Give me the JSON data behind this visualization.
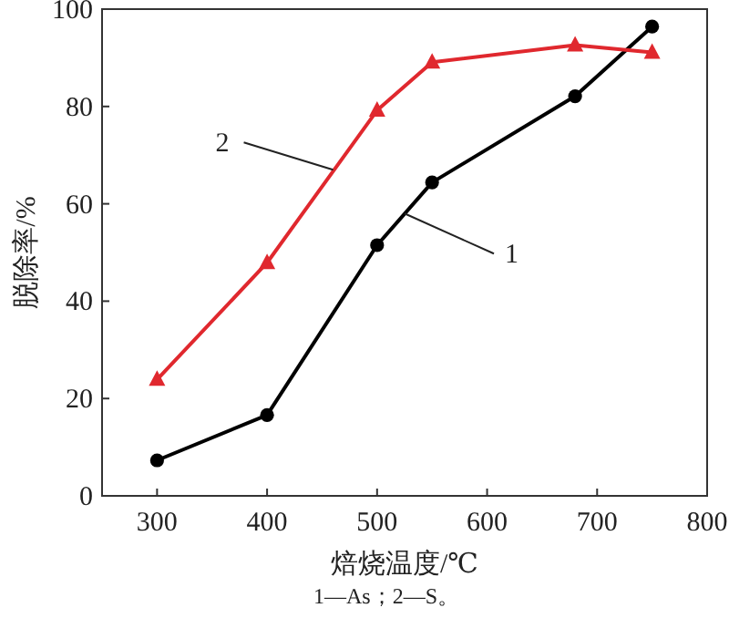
{
  "chart_data": {
    "type": "line",
    "xlabel": "焙烧温度/℃",
    "ylabel": "脱除率/%",
    "xlim": [
      250,
      800
    ],
    "xticks": [
      300,
      400,
      500,
      600,
      700,
      800
    ],
    "ylim": [
      0,
      100
    ],
    "yticks": [
      0,
      20,
      40,
      60,
      80,
      100
    ],
    "grid": false,
    "line_style": "solid",
    "series": [
      {
        "color": "#000000",
        "marker": "circle",
        "x": [
          300,
          400,
          500,
          550,
          680,
          750
        ],
        "values": [
          7.3,
          16.6,
          51.5,
          64.4,
          82.1,
          96.4
        ]
      },
      {
        "color": "#e0282e",
        "marker": "triangle",
        "x": [
          300,
          400,
          500,
          550,
          680,
          750
        ],
        "values": [
          23.9,
          47.9,
          79.2,
          89.1,
          92.6,
          91.1
        ]
      }
    ],
    "annotations": [
      {
        "text": "1",
        "x": 525,
        "y": 58
      },
      {
        "text": "2",
        "x": 460,
        "y": 67
      },
      "1—As；2—S。"
    ]
  }
}
